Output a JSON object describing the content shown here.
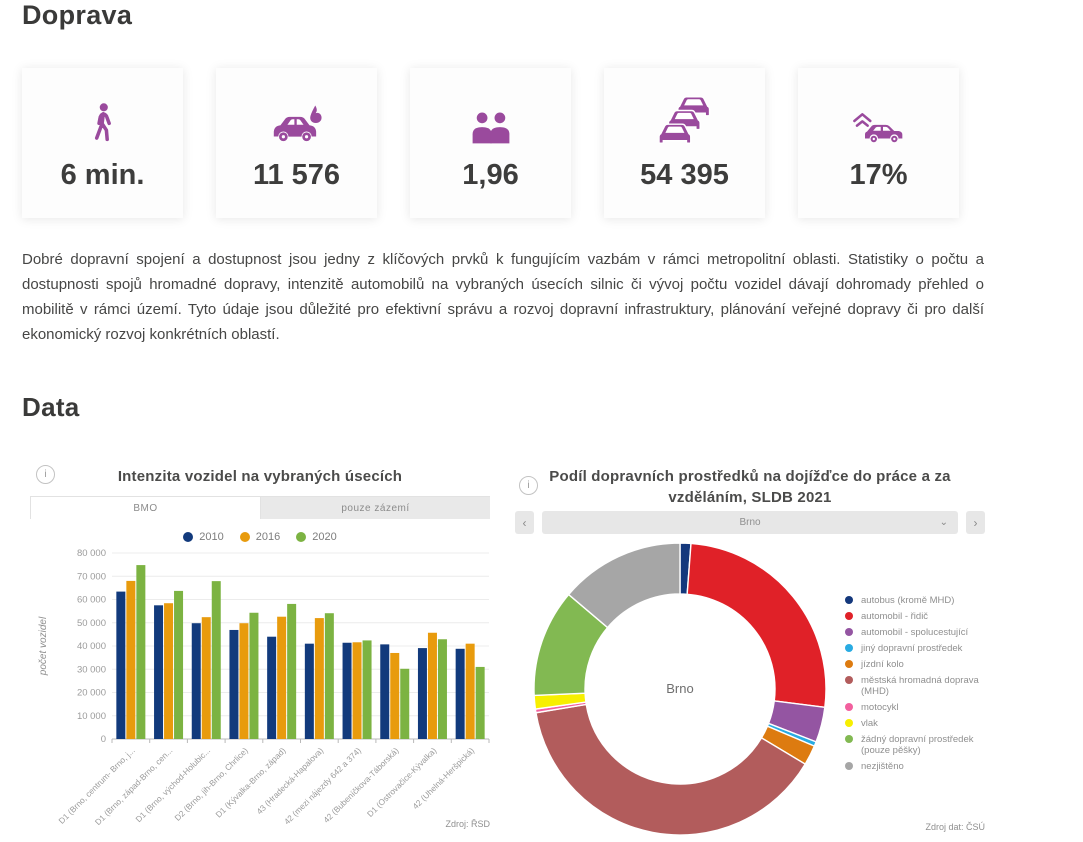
{
  "page": {
    "title": "Doprava",
    "data_heading": "Data"
  },
  "colors": {
    "accent_purple": "#9a4a9d",
    "text_dark": "#3c3c3b",
    "text_gray": "#8f8f8f",
    "bar_2010": "#123a7c",
    "bar_2016": "#e89b0d",
    "bar_2020": "#7cb342"
  },
  "icons": {
    "info": "i",
    "chevron_left": "‹",
    "chevron_right": "›",
    "chevron_down": "⌄"
  },
  "cards": [
    {
      "icon": "pedestrian-icon",
      "value": "6 min."
    },
    {
      "icon": "car-fire-icon",
      "value": "11 576"
    },
    {
      "icon": "two-people-icon",
      "value": "1,96"
    },
    {
      "icon": "traffic-jam-icon",
      "value": "54 395"
    },
    {
      "icon": "car-roof-icon",
      "value": "17%"
    }
  ],
  "intro_text": "Dobré dopravní spojení a dostupnost jsou jedny z klíčových prvků k fungujícím vazbám v rámci metropolitní oblasti. Statistiky o počtu a dostupnosti spojů hromadné dopravy, intenzitě automobilů na vybraných úsecích silnic či vývoj počtu vozidel dávají dohromady přehled o mobilitě v rámci území. Tyto údaje jsou důležité pro efektivní správu a rozvoj dopravní infrastruktury, plánování veřejné dopravy či pro další ekonomický rozvoj konkrétních oblastí.",
  "chart_data": [
    {
      "type": "bar",
      "title": "Intenzita vozidel na vybraných úsecích",
      "tabs": [
        "BMO",
        "pouze zázemí"
      ],
      "active_tab": "BMO",
      "xlabel": "",
      "ylabel": "počet vozidel",
      "ylim": [
        0,
        80000
      ],
      "ytick_step": 10000,
      "yticks": [
        "0",
        "10 000",
        "20 000",
        "30 000",
        "40 000",
        "50 000",
        "60 000",
        "70 000",
        "80 000"
      ],
      "grid": true,
      "legend_position": "top",
      "source": "Zdroj: ŘSD",
      "categories": [
        "D1 (Brno, centrum- Brno, j...",
        "D1 (Brno, západ-Brno, cen...",
        "D1 (Brno, východ-Holubic...",
        "D2 (Brno, jih-Brno, Chrlice)",
        "D1 (Kývalka-Brno, západ)",
        "43 (Hradecká-Hapalova)",
        "42 (mezi nájezdy 642 a 374)",
        "42 (Bubeníčkova-Táborská)",
        "D1 (Ostrovačice-Kývalka)",
        "42 (Uhelná-Heršpická)"
      ],
      "series": [
        {
          "name": "2010",
          "color": "#123a7c",
          "values": [
            63400,
            57500,
            49800,
            46900,
            44000,
            41000,
            41400,
            40700,
            39100,
            38800
          ]
        },
        {
          "name": "2016",
          "color": "#e89b0d",
          "values": [
            68000,
            58400,
            52400,
            49800,
            52600,
            52000,
            41600,
            37000,
            45700,
            41000
          ]
        },
        {
          "name": "2020",
          "color": "#7cb342",
          "values": [
            74800,
            63700,
            67900,
            54300,
            58100,
            54100,
            42400,
            30200,
            42900,
            31000
          ]
        }
      ]
    },
    {
      "type": "pie",
      "subtype": "donut",
      "title": "Podíl dopravních prostředků na dojížďce do práce a za vzděláním, SLDB 2021",
      "selector": {
        "value": "Brno"
      },
      "center_label": "Brno",
      "legend_position": "right",
      "source": "Zdroj dat: ČSÚ",
      "slices": [
        {
          "label": "autobus (kromě MHD)",
          "value": 1.2,
          "color": "#14387c"
        },
        {
          "label": "automobil - řidič",
          "value": 25.8,
          "color": "#e02128"
        },
        {
          "label": "automobil - spolucestující",
          "value": 3.9,
          "color": "#9455a2"
        },
        {
          "label": "jiný dopravní prostředek",
          "value": 0.5,
          "color": "#29abe2"
        },
        {
          "label": "jízdní kolo",
          "value": 2.2,
          "color": "#dd7b10"
        },
        {
          "label": "městská hromadná doprava (MHD)",
          "value": 38.8,
          "color": "#b25c5c"
        },
        {
          "label": "motocykl",
          "value": 0.4,
          "color": "#f2609e"
        },
        {
          "label": "vlak",
          "value": 1.5,
          "color": "#f7ef00"
        },
        {
          "label": "žádný dopravní prostředek (pouze pěšky)",
          "value": 11.9,
          "color": "#82b952"
        },
        {
          "label": "nezjištěno",
          "value": 13.8,
          "color": "#a6a6a6"
        }
      ]
    }
  ]
}
